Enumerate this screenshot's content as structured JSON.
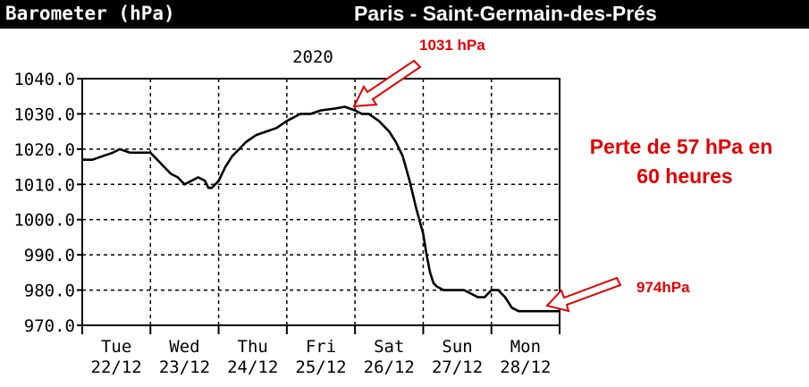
{
  "header": {
    "title": "Barometer (hPa)",
    "location": "Paris - Saint-Germain-des-Prés"
  },
  "colors": {
    "header_bg": "#000000",
    "header_text": "#ffffff",
    "annotation": "#e00000",
    "line": "#000000",
    "grid": "#000000"
  },
  "chart_data": {
    "type": "line",
    "title": "2020",
    "ylim": [
      970,
      1040
    ],
    "y_ticks": [
      "1040.0",
      "1030.0",
      "1020.0",
      "1010.0",
      "1000.0",
      "990.0",
      "980.0",
      "970.0"
    ],
    "x_ticks": [
      {
        "day": "Tue",
        "date": "22/12"
      },
      {
        "day": "Wed",
        "date": "23/12"
      },
      {
        "day": "Thu",
        "date": "24/12"
      },
      {
        "day": "Fri",
        "date": "25/12"
      },
      {
        "day": "Sat",
        "date": "26/12"
      },
      {
        "day": "Sun",
        "date": "27/12"
      },
      {
        "day": "Mon",
        "date": "28/12"
      }
    ],
    "xlim_days": [
      0,
      7
    ],
    "grid": true,
    "series": [
      {
        "x": [
          0.0,
          0.15,
          0.3,
          0.45,
          0.55,
          0.7,
          0.85,
          1.0,
          1.1,
          1.2,
          1.3,
          1.4,
          1.5,
          1.6,
          1.7,
          1.8,
          1.85,
          1.9,
          1.95,
          2.0,
          2.05,
          2.1,
          2.2,
          2.3,
          2.4,
          2.55,
          2.7,
          2.85,
          3.0,
          3.1,
          3.2,
          3.35,
          3.5,
          3.7,
          3.85,
          4.0,
          4.1,
          4.2,
          4.35,
          4.5,
          4.6,
          4.7,
          4.8,
          4.9,
          5.0,
          5.05,
          5.1,
          5.15,
          5.2,
          5.3,
          5.4,
          5.5,
          5.6,
          5.7,
          5.8,
          5.9,
          6.0,
          6.1,
          6.2,
          6.3,
          6.4,
          6.5,
          6.6,
          6.7,
          6.8,
          6.95,
          7.0
        ],
        "y": [
          1017,
          1017,
          1018,
          1019,
          1020,
          1019,
          1019,
          1019,
          1017,
          1015,
          1013,
          1012,
          1010,
          1011,
          1012,
          1011,
          1009,
          1009,
          1010,
          1011,
          1013,
          1015,
          1018,
          1020,
          1022,
          1024,
          1025,
          1026,
          1028,
          1029,
          1030,
          1030,
          1031,
          1031.5,
          1032,
          1031,
          1030,
          1030,
          1028,
          1025,
          1022,
          1018,
          1011,
          1003,
          996,
          990,
          985,
          982,
          981,
          980,
          980,
          980,
          980,
          979,
          978,
          978,
          980,
          980,
          978,
          975,
          974,
          974,
          974,
          974,
          974,
          974,
          974
        ]
      }
    ],
    "annotations": [
      {
        "text": "1031 hPa"
      },
      {
        "text": "Perte de 57 hPa en"
      },
      {
        "text": "60 heures"
      },
      {
        "text": "974hPa"
      }
    ]
  }
}
